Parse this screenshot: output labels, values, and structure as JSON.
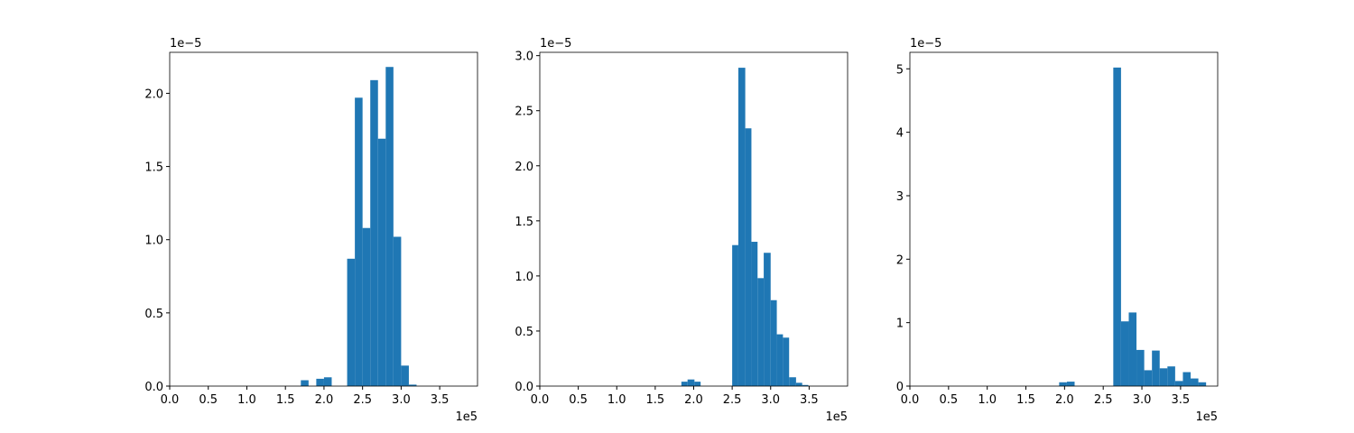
{
  "chart_data": [
    {
      "type": "histogram",
      "color": "#1f77b4",
      "bins": [
        1.7,
        1.8,
        1.9,
        2.0,
        2.1,
        2.2,
        2.3,
        2.4,
        2.5,
        2.6,
        2.7,
        2.8,
        2.9,
        3.0,
        3.1,
        3.2
      ],
      "values": [
        0.04,
        0,
        0.05,
        0.06,
        0,
        0,
        0.87,
        1.97,
        1.08,
        2.09,
        1.69,
        2.18,
        1.02,
        0.14,
        0.01
      ],
      "xlim": [
        0,
        3.99
      ],
      "ylim": [
        0,
        2.28
      ],
      "xticks": [
        {
          "value": 0,
          "label": "0.0"
        },
        0.5,
        {
          "value": 1,
          "label": "1.0"
        },
        1.5,
        {
          "value": 2,
          "label": "2.0"
        },
        2.5,
        {
          "value": 3,
          "label": "3.0"
        },
        3.5
      ],
      "yticks": [
        {
          "value": 0,
          "label": "0.0"
        },
        0.5,
        {
          "value": 1,
          "label": "1.0"
        },
        1.5,
        {
          "value": 2,
          "label": "2.0"
        }
      ],
      "x_offset_label": "1e5",
      "y_offset_label": "1e−5"
    },
    {
      "type": "histogram",
      "color": "#1f77b4",
      "bins": [
        1.84,
        1.92,
        2.01,
        2.09,
        2.17,
        2.25,
        2.34,
        2.42,
        2.5,
        2.58,
        2.67,
        2.75,
        2.83,
        2.91,
        3.0,
        3.08,
        3.16,
        3.24,
        3.33,
        3.41,
        3.49
      ],
      "values": [
        0.04,
        0.06,
        0.04,
        0,
        0,
        0,
        0,
        0,
        1.28,
        2.89,
        2.34,
        1.31,
        0.98,
        1.21,
        0.78,
        0.47,
        0.44,
        0.08,
        0.03,
        0.01
      ],
      "xlim": [
        0,
        4.0
      ],
      "ylim": [
        0,
        3.03
      ],
      "xticks": [
        {
          "value": 0,
          "label": "0.0"
        },
        0.5,
        {
          "value": 1,
          "label": "1.0"
        },
        1.5,
        {
          "value": 2,
          "label": "2.0"
        },
        2.5,
        {
          "value": 3,
          "label": "3.0"
        },
        3.5
      ],
      "yticks": [
        {
          "value": 0,
          "label": "0.0"
        },
        0.5,
        {
          "value": 1,
          "label": "1.0"
        },
        1.5,
        {
          "value": 2,
          "label": "2.0"
        },
        2.5,
        {
          "value": 3,
          "label": "3.0"
        }
      ],
      "x_offset_label": "1e5",
      "y_offset_label": "1e−5"
    },
    {
      "type": "histogram",
      "color": "#1f77b4",
      "bins": [
        1.93,
        2.03,
        2.13,
        2.23,
        2.33,
        2.43,
        2.53,
        2.63,
        2.73,
        2.83,
        2.93,
        3.03,
        3.13,
        3.23,
        3.33,
        3.43,
        3.53,
        3.63,
        3.73,
        3.83
      ],
      "values": [
        0.06,
        0.07,
        0,
        0,
        0,
        0,
        0,
        5.02,
        1.02,
        1.16,
        0.57,
        0.25,
        0.56,
        0.28,
        0.31,
        0.08,
        0.22,
        0.12,
        0.06
      ],
      "xlim": [
        0,
        3.98
      ],
      "ylim": [
        0,
        5.26
      ],
      "xticks": [
        {
          "value": 0,
          "label": "0.0"
        },
        0.5,
        {
          "value": 1,
          "label": "1.0"
        },
        1.5,
        {
          "value": 2,
          "label": "2.0"
        },
        2.5,
        {
          "value": 3,
          "label": "3.0"
        },
        3.5
      ],
      "yticks": [
        0,
        1,
        2,
        3,
        4,
        5
      ],
      "x_offset_label": "1e5",
      "y_offset_label": "1e−5"
    }
  ]
}
